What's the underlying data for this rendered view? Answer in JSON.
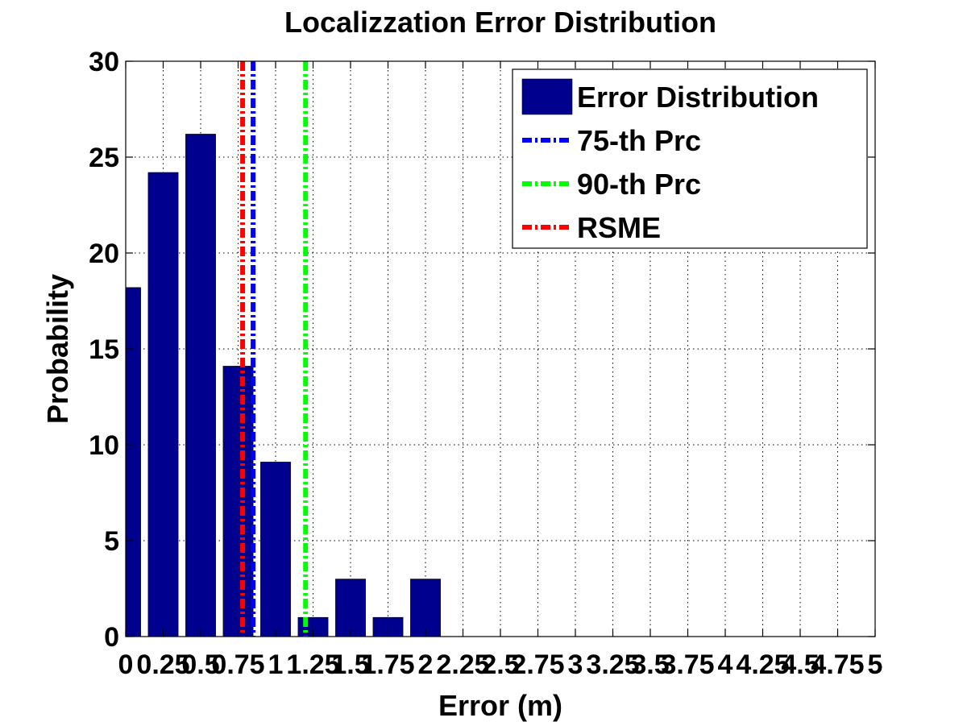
{
  "chart_data": {
    "type": "bar",
    "title": "Localizzation Error Distribution",
    "xlabel": "Error (m)",
    "ylabel": "Probability",
    "xlim": [
      0,
      5
    ],
    "ylim": [
      0,
      30
    ],
    "x_ticks": [
      0,
      0.25,
      0.5,
      0.75,
      1,
      1.25,
      1.5,
      1.75,
      2,
      2.25,
      2.5,
      2.75,
      3,
      3.25,
      3.5,
      3.75,
      4,
      4.25,
      4.5,
      4.75,
      5
    ],
    "x_tick_labels": [
      "0",
      "0.25",
      "0.5",
      "0.75",
      "1",
      "1.25",
      "1.5",
      "1.75",
      "2",
      "2.25",
      "2.5",
      "2.75",
      "3",
      "3.25",
      "3.5",
      "3.75",
      "4",
      "4.25",
      "4.5",
      "4.75",
      "5"
    ],
    "y_ticks": [
      0,
      5,
      10,
      15,
      20,
      25,
      30
    ],
    "y_tick_labels": [
      "0",
      "5",
      "10",
      "15",
      "20",
      "25",
      "30"
    ],
    "grid": true,
    "legend_position": "top-right",
    "bars": {
      "name": "Error Distribution",
      "color": "#00008f",
      "x": [
        0,
        0.25,
        0.5,
        0.75,
        1,
        1.25,
        1.5,
        1.75,
        2
      ],
      "values": [
        18.2,
        24.2,
        26.2,
        14.1,
        9.1,
        1.0,
        3.0,
        1.0,
        3.0
      ]
    },
    "reference_lines": [
      {
        "name": "75-th Prc",
        "x": 0.85,
        "color": "#0000ff"
      },
      {
        "name": "90-th Prc",
        "x": 1.2,
        "color": "#00ff00"
      },
      {
        "name": "RSME",
        "x": 0.78,
        "color": "#ff0000"
      }
    ]
  }
}
